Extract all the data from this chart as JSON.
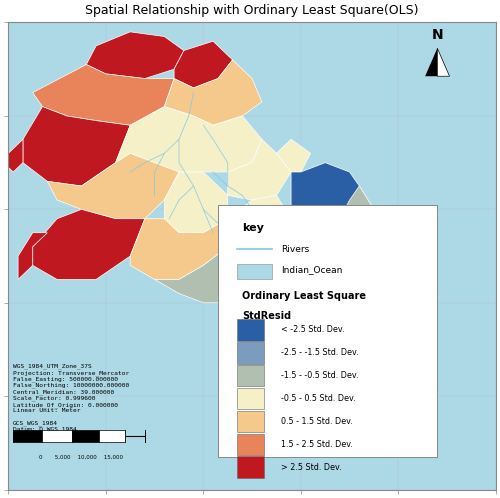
{
  "title": "Spatial Relationship with Ordinary Least Square(OLS)",
  "map_background": "#add8e6",
  "legend_title1": "key",
  "legend_rivers_label": "Rivers",
  "legend_ocean_label": "Indian_Ocean",
  "legend_section_title": "Ordinary Least Square",
  "legend_subtitle": "StdResid",
  "legend_categories": [
    "< -2.5 Std. Dev.",
    "-2.5 - -1.5 Std. Dev.",
    "-1.5 - -0.5 Std. Dev.",
    "-0.5 - 0.5 Std. Dev.",
    "0.5 - 1.5 Std. Dev.",
    "1.5 - 2.5 Std. Dev.",
    "> 2.5 Std. Dev."
  ],
  "legend_colors": [
    "#2b5fa5",
    "#7b9bbf",
    "#b0bfb0",
    "#f5f0c8",
    "#f5c98c",
    "#e8835a",
    "#c01820"
  ],
  "ocean_color": "#add8e6",
  "river_color": "#7ec8e3",
  "very_high": "#c01820",
  "high": "#e8835a",
  "med_high": "#f5c98c",
  "neutral": "#f5f0c8",
  "med_low": "#b0bfb0",
  "low": "#7b9bbf",
  "very_low": "#2b5fa5"
}
